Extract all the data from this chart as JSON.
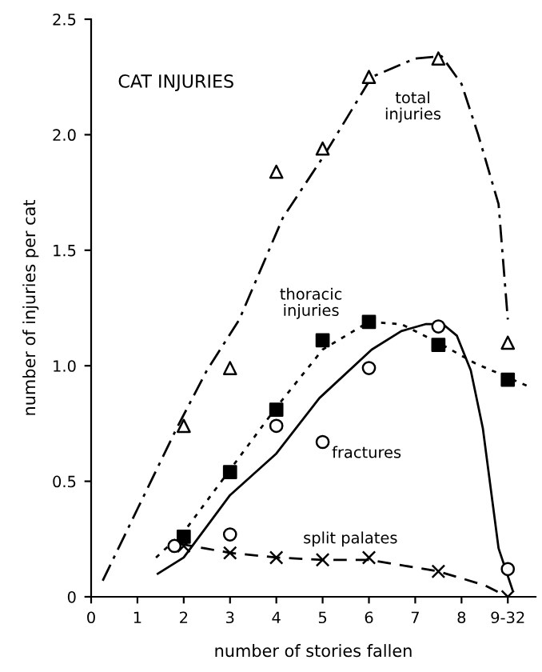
{
  "chart_data": {
    "type": "scatter",
    "title": "CAT INJURIES",
    "xlabel": "number of stories fallen",
    "ylabel": "number of injuries per cat",
    "xlim": [
      0,
      9.6
    ],
    "ylim": [
      0,
      2.5
    ],
    "xticks": [
      0,
      1,
      2,
      3,
      4,
      5,
      6,
      7,
      8,
      {
        "value": 9,
        "label": "9-32"
      }
    ],
    "yticks": [
      0,
      0.5,
      {
        "value": 1,
        "label": "1.0"
      },
      1.5,
      {
        "value": 2,
        "label": "2.0"
      },
      2.5
    ],
    "grid": false,
    "legend": false,
    "series": [
      {
        "name": "total\ninjuries",
        "marker": "triangle",
        "color": "#000000",
        "x": [
          2,
          3,
          4,
          5,
          6,
          7.5,
          9
        ],
        "values": [
          0.74,
          0.99,
          1.84,
          1.94,
          2.25,
          2.33,
          1.1
        ]
      },
      {
        "name": "thoracic\ninjuries",
        "marker": "square",
        "color": "#000000",
        "x": [
          2,
          3,
          4,
          5,
          6,
          7.5,
          9
        ],
        "values": [
          0.26,
          0.54,
          0.81,
          1.11,
          1.19,
          1.09,
          0.94
        ]
      },
      {
        "name": "fractures",
        "marker": "circle",
        "color": "#000000",
        "x": [
          1.8,
          3,
          4,
          5,
          6,
          7.5,
          9
        ],
        "values": [
          0.22,
          0.27,
          0.74,
          0.67,
          0.99,
          1.17,
          0.12
        ]
      },
      {
        "name": "split palates",
        "marker": "cross",
        "color": "#000000",
        "x": [
          2,
          3,
          4,
          5,
          6,
          7.5,
          9
        ],
        "values": [
          0.22,
          0.19,
          0.17,
          0.16,
          0.17,
          0.11,
          0.0
        ]
      },
      {
        "type": "line",
        "line_style": "dashdot",
        "color": "#000000",
        "x": [
          0.25,
          1,
          1.85,
          2.5,
          3.2,
          4.14,
          5.03,
          6.06,
          7,
          7.57,
          8,
          8.36,
          8.8,
          9
        ],
        "values": [
          0.07,
          0.38,
          0.73,
          0.98,
          1.2,
          1.64,
          1.91,
          2.25,
          2.33,
          2.34,
          2.22,
          2.0,
          1.7,
          1.2
        ]
      },
      {
        "type": "line",
        "line_style": "dotted",
        "color": "#000000",
        "x": [
          1.4,
          2,
          3,
          4,
          5,
          6,
          6.7,
          7.5,
          8.3,
          9,
          9.45
        ],
        "values": [
          0.17,
          0.28,
          0.55,
          0.82,
          1.07,
          1.19,
          1.18,
          1.1,
          1.01,
          0.95,
          0.91
        ]
      },
      {
        "type": "line",
        "line_style": "solid",
        "color": "#000000",
        "x": [
          1.44,
          2,
          3,
          4,
          4.93,
          6.06,
          6.7,
          7.22,
          7.6,
          7.9,
          8.2,
          8.46,
          8.8,
          9.1
        ],
        "values": [
          0.1,
          0.17,
          0.44,
          0.62,
          0.86,
          1.07,
          1.15,
          1.18,
          1.18,
          1.13,
          0.98,
          0.73,
          0.21,
          0.03
        ]
      },
      {
        "type": "line",
        "line_style": "dashed",
        "color": "#000000",
        "x": [
          1.9,
          3,
          4,
          5,
          6,
          7.5,
          8.5,
          9
        ],
        "values": [
          0.23,
          0.19,
          0.17,
          0.16,
          0.16,
          0.11,
          0.05,
          0.0
        ]
      }
    ]
  }
}
